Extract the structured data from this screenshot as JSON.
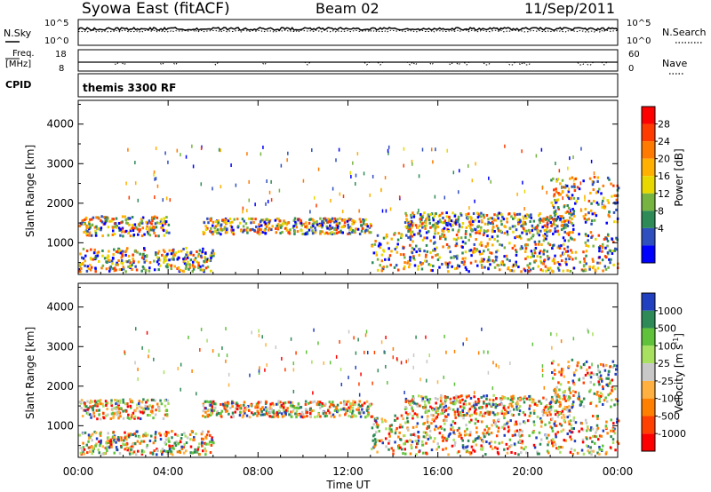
{
  "header": {
    "site": "Syowa East (fitACF)",
    "beam": "Beam 02",
    "date": "11/Sep/2011"
  },
  "top_panels": {
    "nsky_label": "N.Sky",
    "nsky_ticks": [
      "10^5",
      "10^0"
    ],
    "nsearch_label": "N.Search",
    "nsearch_ticks": [
      "10^5",
      "10^0"
    ],
    "freq_label": "Freq.",
    "freq_unit": "[MHz]",
    "freq_ticks": [
      "18",
      "8"
    ],
    "nave_label": "Nave",
    "nave_ticks": [
      "60",
      "0"
    ],
    "cpid_label": "CPID",
    "cpid_value": "themis 3300 RF"
  },
  "axes": {
    "y_label": "Slant Range [km]",
    "y_ticks": [
      "4000",
      "3000",
      "2000",
      "1000"
    ],
    "x_label": "Time UT",
    "x_ticks": [
      "00:00",
      "04:00",
      "08:00",
      "12:00",
      "16:00",
      "20:00",
      "00:00"
    ]
  },
  "power_scale": {
    "label": "Power [dB]",
    "ticks": [
      "28",
      "24",
      "20",
      "16",
      "12",
      "8",
      "4"
    ],
    "colors": [
      "#ff0000",
      "#ff3b00",
      "#ff7a00",
      "#ffb000",
      "#e8d800",
      "#77b341",
      "#2e8b57",
      "#2f4fbf",
      "#0000ff"
    ]
  },
  "velocity_scale": {
    "label": "Velocity [m s",
    "label_sup": "-1",
    "label_end": "]",
    "ticks": [
      "1000",
      "500",
      "100",
      "25",
      "-25",
      "-100",
      "-500",
      "-1000"
    ],
    "colors": [
      "#2040c0",
      "#2e8b57",
      "#5fc23a",
      "#a8e060",
      "#c8c8c8",
      "#ffb040",
      "#ff8000",
      "#ff4000",
      "#ff0000"
    ]
  },
  "chart_data": {
    "type": "heatmap",
    "x": [
      "00:00",
      "04:00",
      "08:00",
      "12:00",
      "16:00",
      "20:00",
      "00:00"
    ],
    "xlabel": "Time UT",
    "ylabel": "Slant Range [km]",
    "ylim": [
      200,
      4600
    ],
    "panels": [
      "Power [dB]",
      "Velocity [m s-1]"
    ],
    "echo_bands": [
      {
        "start_h": 0.0,
        "end_h": 6.0,
        "range_km": [
          300,
          900
        ]
      },
      {
        "start_h": 0.0,
        "end_h": 4.0,
        "range_km": [
          1200,
          1700
        ]
      },
      {
        "start_h": 5.5,
        "end_h": 13.0,
        "range_km": [
          1250,
          1650
        ]
      },
      {
        "start_h": 13.0,
        "end_h": 24.0,
        "range_km": [
          300,
          1300
        ]
      },
      {
        "start_h": 14.5,
        "end_h": 22.0,
        "range_km": [
          1300,
          1800
        ]
      },
      {
        "start_h": 21.0,
        "end_h": 24.0,
        "range_km": [
          1500,
          2700
        ]
      }
    ]
  }
}
